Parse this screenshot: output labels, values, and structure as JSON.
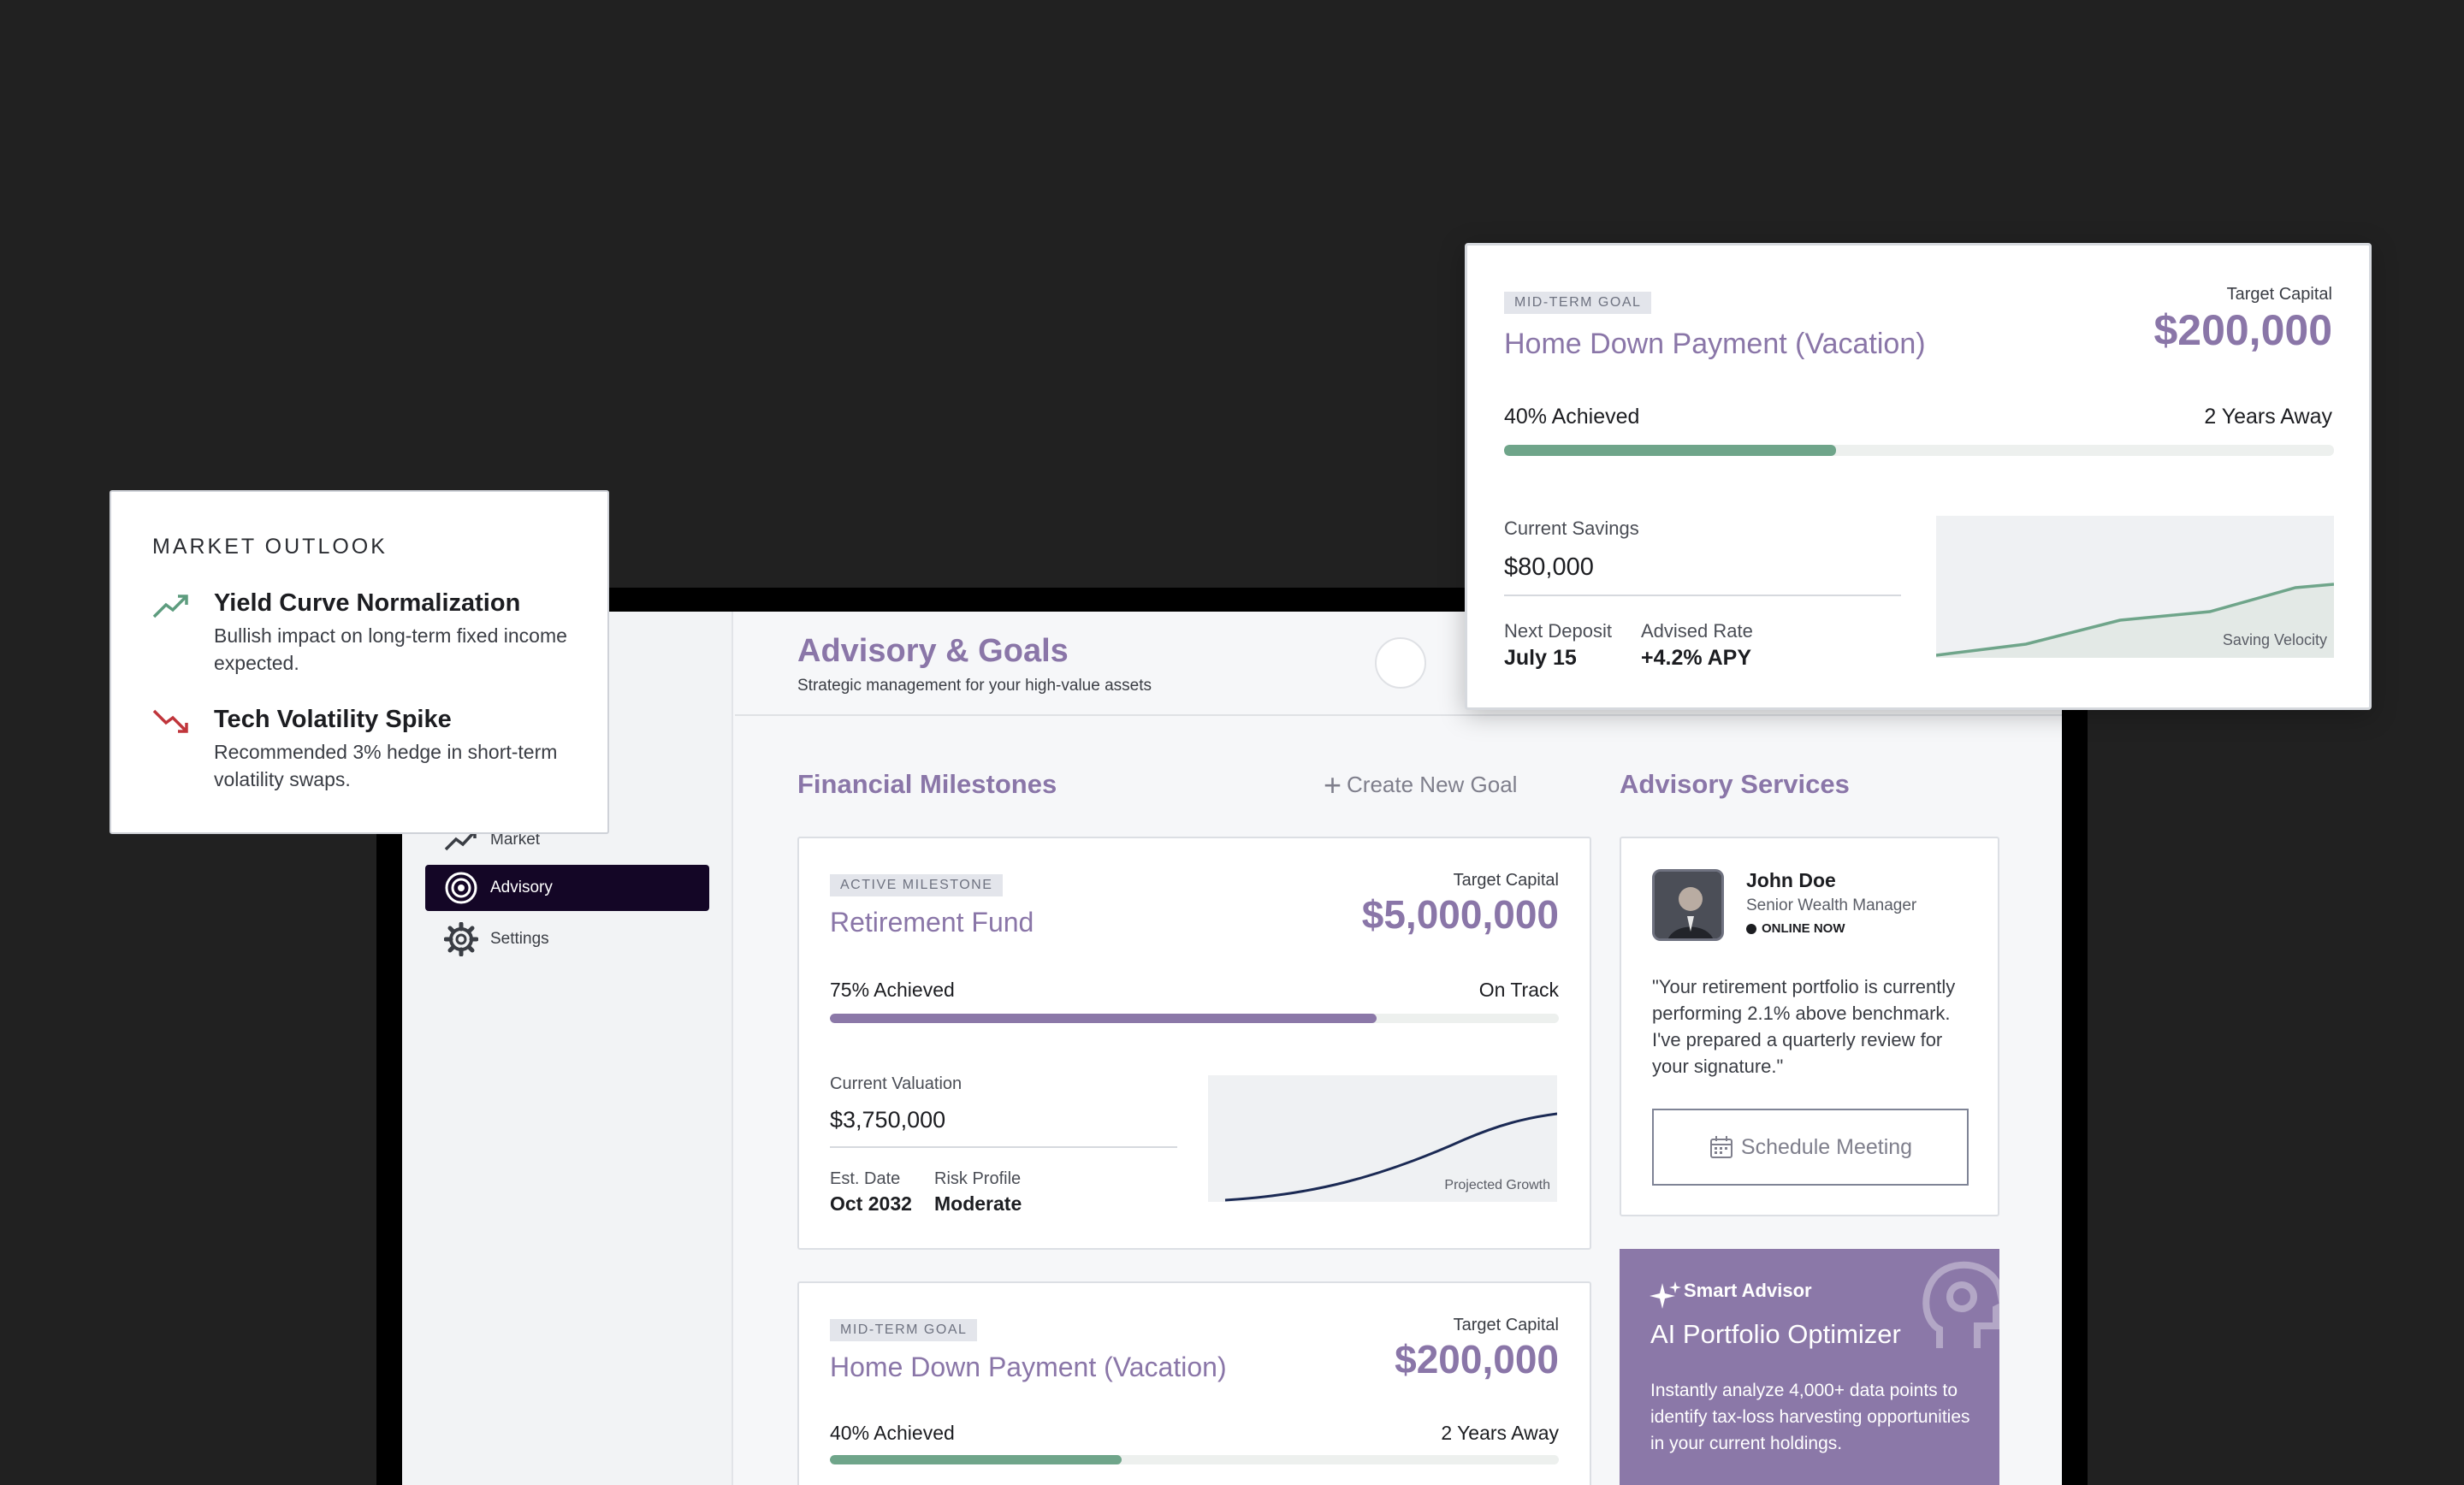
{
  "colors": {
    "background": "#212121",
    "accent_purple": "#8a76a8",
    "nav_active": "#140626",
    "progress_purple": "#8b78a8",
    "progress_green": "#6fa58a",
    "trend_up": "#5d9c7e",
    "trend_down": "#c0353b"
  },
  "sidebar": {
    "items": [
      {
        "label": "Market",
        "icon": "trend-up-icon",
        "active": false
      },
      {
        "label": "Advisory",
        "icon": "target-icon",
        "active": true
      },
      {
        "label": "Settings",
        "icon": "gear-icon",
        "active": false
      }
    ]
  },
  "header": {
    "title": "Advisory & Goals",
    "subtitle": "Strategic management for your high-value assets"
  },
  "milestones": {
    "title": "Financial Milestones",
    "create_label": "Create New Goal",
    "cards": [
      {
        "tag": "ACTIVE MILESTONE",
        "name": "Retirement Fund",
        "target_label": "Target Capital",
        "target_value": "$5,000,000",
        "progress_label": "75% Achieved",
        "progress": 0.75,
        "status": "On Track",
        "metric_label": "Current Valuation",
        "metric_value": "$3,750,000",
        "detail1_label": "Est. Date",
        "detail1_value": "Oct 2032",
        "detail2_label": "Risk Profile",
        "detail2_value": "Moderate",
        "chart_caption": "Projected Growth"
      },
      {
        "tag": "MID-TERM GOAL",
        "name": "Home Down Payment (Vacation)",
        "target_label": "Target Capital",
        "target_value": "$200,000",
        "progress_label": "40% Achieved",
        "progress": 0.4,
        "status": "2 Years Away"
      }
    ]
  },
  "advisory": {
    "title": "Advisory Services",
    "advisor": {
      "name": "John Doe",
      "role": "Senior Wealth Manager",
      "status": "ONLINE NOW",
      "quote": "\"Your retirement portfolio is currently performing 2.1% above benchmark. I've prepared a quarterly review for your signature.\"",
      "button": "Schedule Meeting"
    },
    "smart": {
      "label": "Smart Advisor",
      "title": "AI Portfolio Optimizer",
      "description": "Instantly analyze 4,000+ data points to identify tax-loss harvesting opportunities in your current holdings."
    }
  },
  "outlook": {
    "title": "MARKET OUTLOOK",
    "items": [
      {
        "icon": "trend-up-icon",
        "title": "Yield Curve Normalization",
        "description": "Bullish impact on long-term fixed income expected."
      },
      {
        "icon": "trend-down-icon",
        "title": "Tech Volatility Spike",
        "description": "Recommended 3% hedge in short-term volatility swaps."
      }
    ]
  },
  "floating_goal": {
    "tag": "MID-TERM GOAL",
    "name": "Home Down Payment (Vacation)",
    "target_label": "Target Capital",
    "target_value": "$200,000",
    "progress_label": "40% Achieved",
    "progress": 0.4,
    "status": "2 Years Away",
    "metric_label": "Current Savings",
    "metric_value": "$80,000",
    "detail1_label": "Next Deposit",
    "detail1_value": "July 15",
    "detail2_label": "Advised Rate",
    "detail2_value": "+4.2% APY",
    "chart_caption": "Saving Velocity"
  }
}
